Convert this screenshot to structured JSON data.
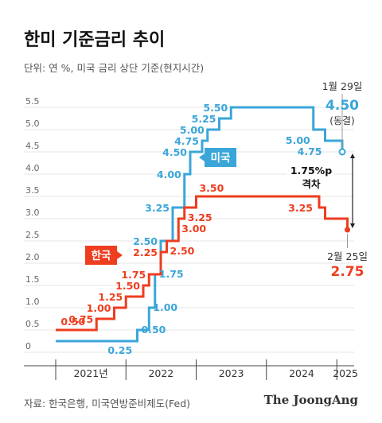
{
  "header": {
    "title": "한미 기준금리 추이",
    "subtitle": "단위: 연 %, 미국 금리 상단 기준(현지시간)"
  },
  "footer": {
    "source": "자료: 한국은행, 미국연방준비제도(Fed)",
    "brand": "The JoongAng"
  },
  "chart_data": {
    "type": "line",
    "step": true,
    "ylim": [
      0,
      5.5
    ],
    "yticks": [
      "0",
      "0.5",
      "1.0",
      "1.5",
      "2.0",
      "2.5",
      "3.0",
      "3.5",
      "4.0",
      "4.5",
      "5.0",
      "5.5"
    ],
    "xticks": [
      "2021년",
      "2022",
      "2023",
      "2024",
      "2025"
    ],
    "grid": true,
    "series": [
      {
        "name": "미국",
        "color": "#3aa6d8",
        "points": [
          {
            "x": "2021-01",
            "y": 0.25
          },
          {
            "x": "2022-03",
            "y": 0.5,
            "label": "0.50"
          },
          {
            "x": "2022-05",
            "y": 1.0,
            "label": "1.00"
          },
          {
            "x": "2022-06",
            "y": 1.75,
            "label": "1.75"
          },
          {
            "x": "2022-07",
            "y": 2.5,
            "label": "2.50"
          },
          {
            "x": "2022-09",
            "y": 3.25,
            "label": "3.25"
          },
          {
            "x": "2022-11",
            "y": 4.0,
            "label": "4.00"
          },
          {
            "x": "2022-12",
            "y": 4.5,
            "label": "4.50"
          },
          {
            "x": "2023-02",
            "y": 4.75,
            "label": "4.75"
          },
          {
            "x": "2023-03",
            "y": 5.0,
            "label": "5.00"
          },
          {
            "x": "2023-05",
            "y": 5.25,
            "label": "5.25"
          },
          {
            "x": "2023-07",
            "y": 5.5,
            "label": "5.50"
          },
          {
            "x": "2024-09",
            "y": 5.0,
            "label": "5.00"
          },
          {
            "x": "2024-11",
            "y": 4.75,
            "label": "4.75"
          },
          {
            "x": "2025-01-29",
            "y": 4.5
          }
        ],
        "start_label": "0.25",
        "end_date": "1월 29일",
        "end_value": "4.50",
        "end_note": "(동결)"
      },
      {
        "name": "한국",
        "color": "#ee3d1f",
        "points": [
          {
            "x": "2021-01",
            "y": 0.5,
            "label": "0.50"
          },
          {
            "x": "2021-08",
            "y": 0.75,
            "label": "0.75"
          },
          {
            "x": "2021-11",
            "y": 1.0,
            "label": "1.00"
          },
          {
            "x": "2022-01",
            "y": 1.25,
            "label": "1.25"
          },
          {
            "x": "2022-04",
            "y": 1.5,
            "label": "1.50"
          },
          {
            "x": "2022-05",
            "y": 1.75,
            "label": "1.75"
          },
          {
            "x": "2022-07",
            "y": 2.25,
            "label": "2.25"
          },
          {
            "x": "2022-08",
            "y": 2.5,
            "label": "2.50"
          },
          {
            "x": "2022-10",
            "y": 3.0,
            "label": "3.00"
          },
          {
            "x": "2022-11",
            "y": 3.25,
            "label": "3.25"
          },
          {
            "x": "2023-01",
            "y": 3.5,
            "label": "3.50"
          },
          {
            "x": "2024-10",
            "y": 3.25,
            "label": "3.25"
          },
          {
            "x": "2024-11",
            "y": 3.0
          },
          {
            "x": "2025-02-25",
            "y": 2.75
          }
        ],
        "end_date": "2월 25일",
        "end_value": "2.75"
      }
    ],
    "annotation": {
      "line1": "1.75%p",
      "line2": "격차"
    }
  }
}
